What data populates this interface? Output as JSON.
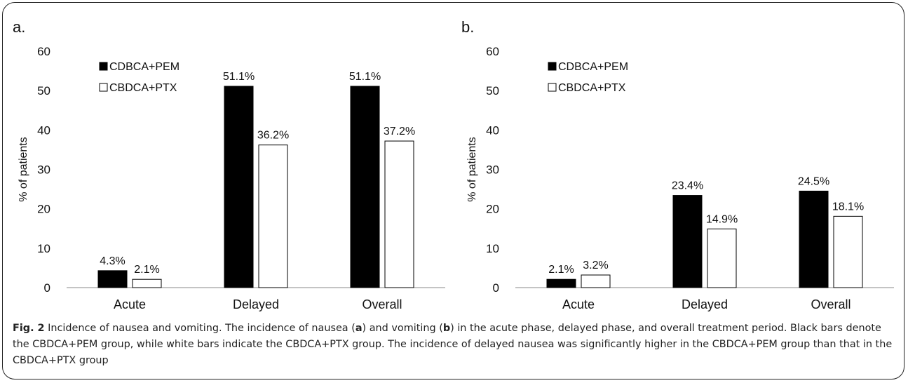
{
  "chart_data": [
    {
      "type": "bar",
      "panel_label": "a.",
      "categories": [
        "Acute",
        "Delayed",
        "Overall"
      ],
      "series": [
        {
          "name": "CDBCA+PEM",
          "values": [
            4.3,
            51.1,
            51.1
          ],
          "color": "#000000",
          "labels": [
            "4.3%",
            "51.1%",
            "51.1%"
          ]
        },
        {
          "name": "CBDCA+PTX",
          "values": [
            2.1,
            36.2,
            37.2
          ],
          "color": "#ffffff",
          "labels": [
            "2.1%",
            "36.2%",
            "37.2%"
          ]
        }
      ],
      "ylabel": "% of patients",
      "ylim": [
        0,
        60
      ],
      "yticks": [
        "0",
        "10",
        "20",
        "30",
        "40",
        "50",
        "60"
      ],
      "grid": false,
      "legend_position": "top-left"
    },
    {
      "type": "bar",
      "panel_label": "b.",
      "categories": [
        "Acute",
        "Delayed",
        "Overall"
      ],
      "series": [
        {
          "name": "CDBCA+PEM",
          "values": [
            2.1,
            23.4,
            24.5
          ],
          "color": "#000000",
          "labels": [
            "2.1%",
            "23.4%",
            "24.5%"
          ]
        },
        {
          "name": "CBDCA+PTX",
          "values": [
            3.2,
            14.9,
            18.1
          ],
          "color": "#ffffff",
          "labels": [
            "3.2%",
            "14.9%",
            "18.1%"
          ]
        }
      ],
      "ylabel": "% of patients",
      "ylim": [
        0,
        60
      ],
      "yticks": [
        "0",
        "10",
        "20",
        "30",
        "40",
        "50",
        "60"
      ],
      "grid": false,
      "legend_position": "top-left"
    }
  ],
  "caption": {
    "fig_label": "Fig. 2",
    "t1": " Incidence of nausea and vomiting. The incidence of nausea (",
    "b1": "a",
    "t2": ") and vomiting (",
    "b2": "b",
    "t3": ") in the acute phase, delayed phase, and overall treatment period. Black bars denote the CBDCA+PEM group, while white bars indicate the CBDCA+PTX group. The incidence of delayed nausea was significantly higher in the CBDCA+PEM group than that in the CBDCA+PTX group"
  }
}
